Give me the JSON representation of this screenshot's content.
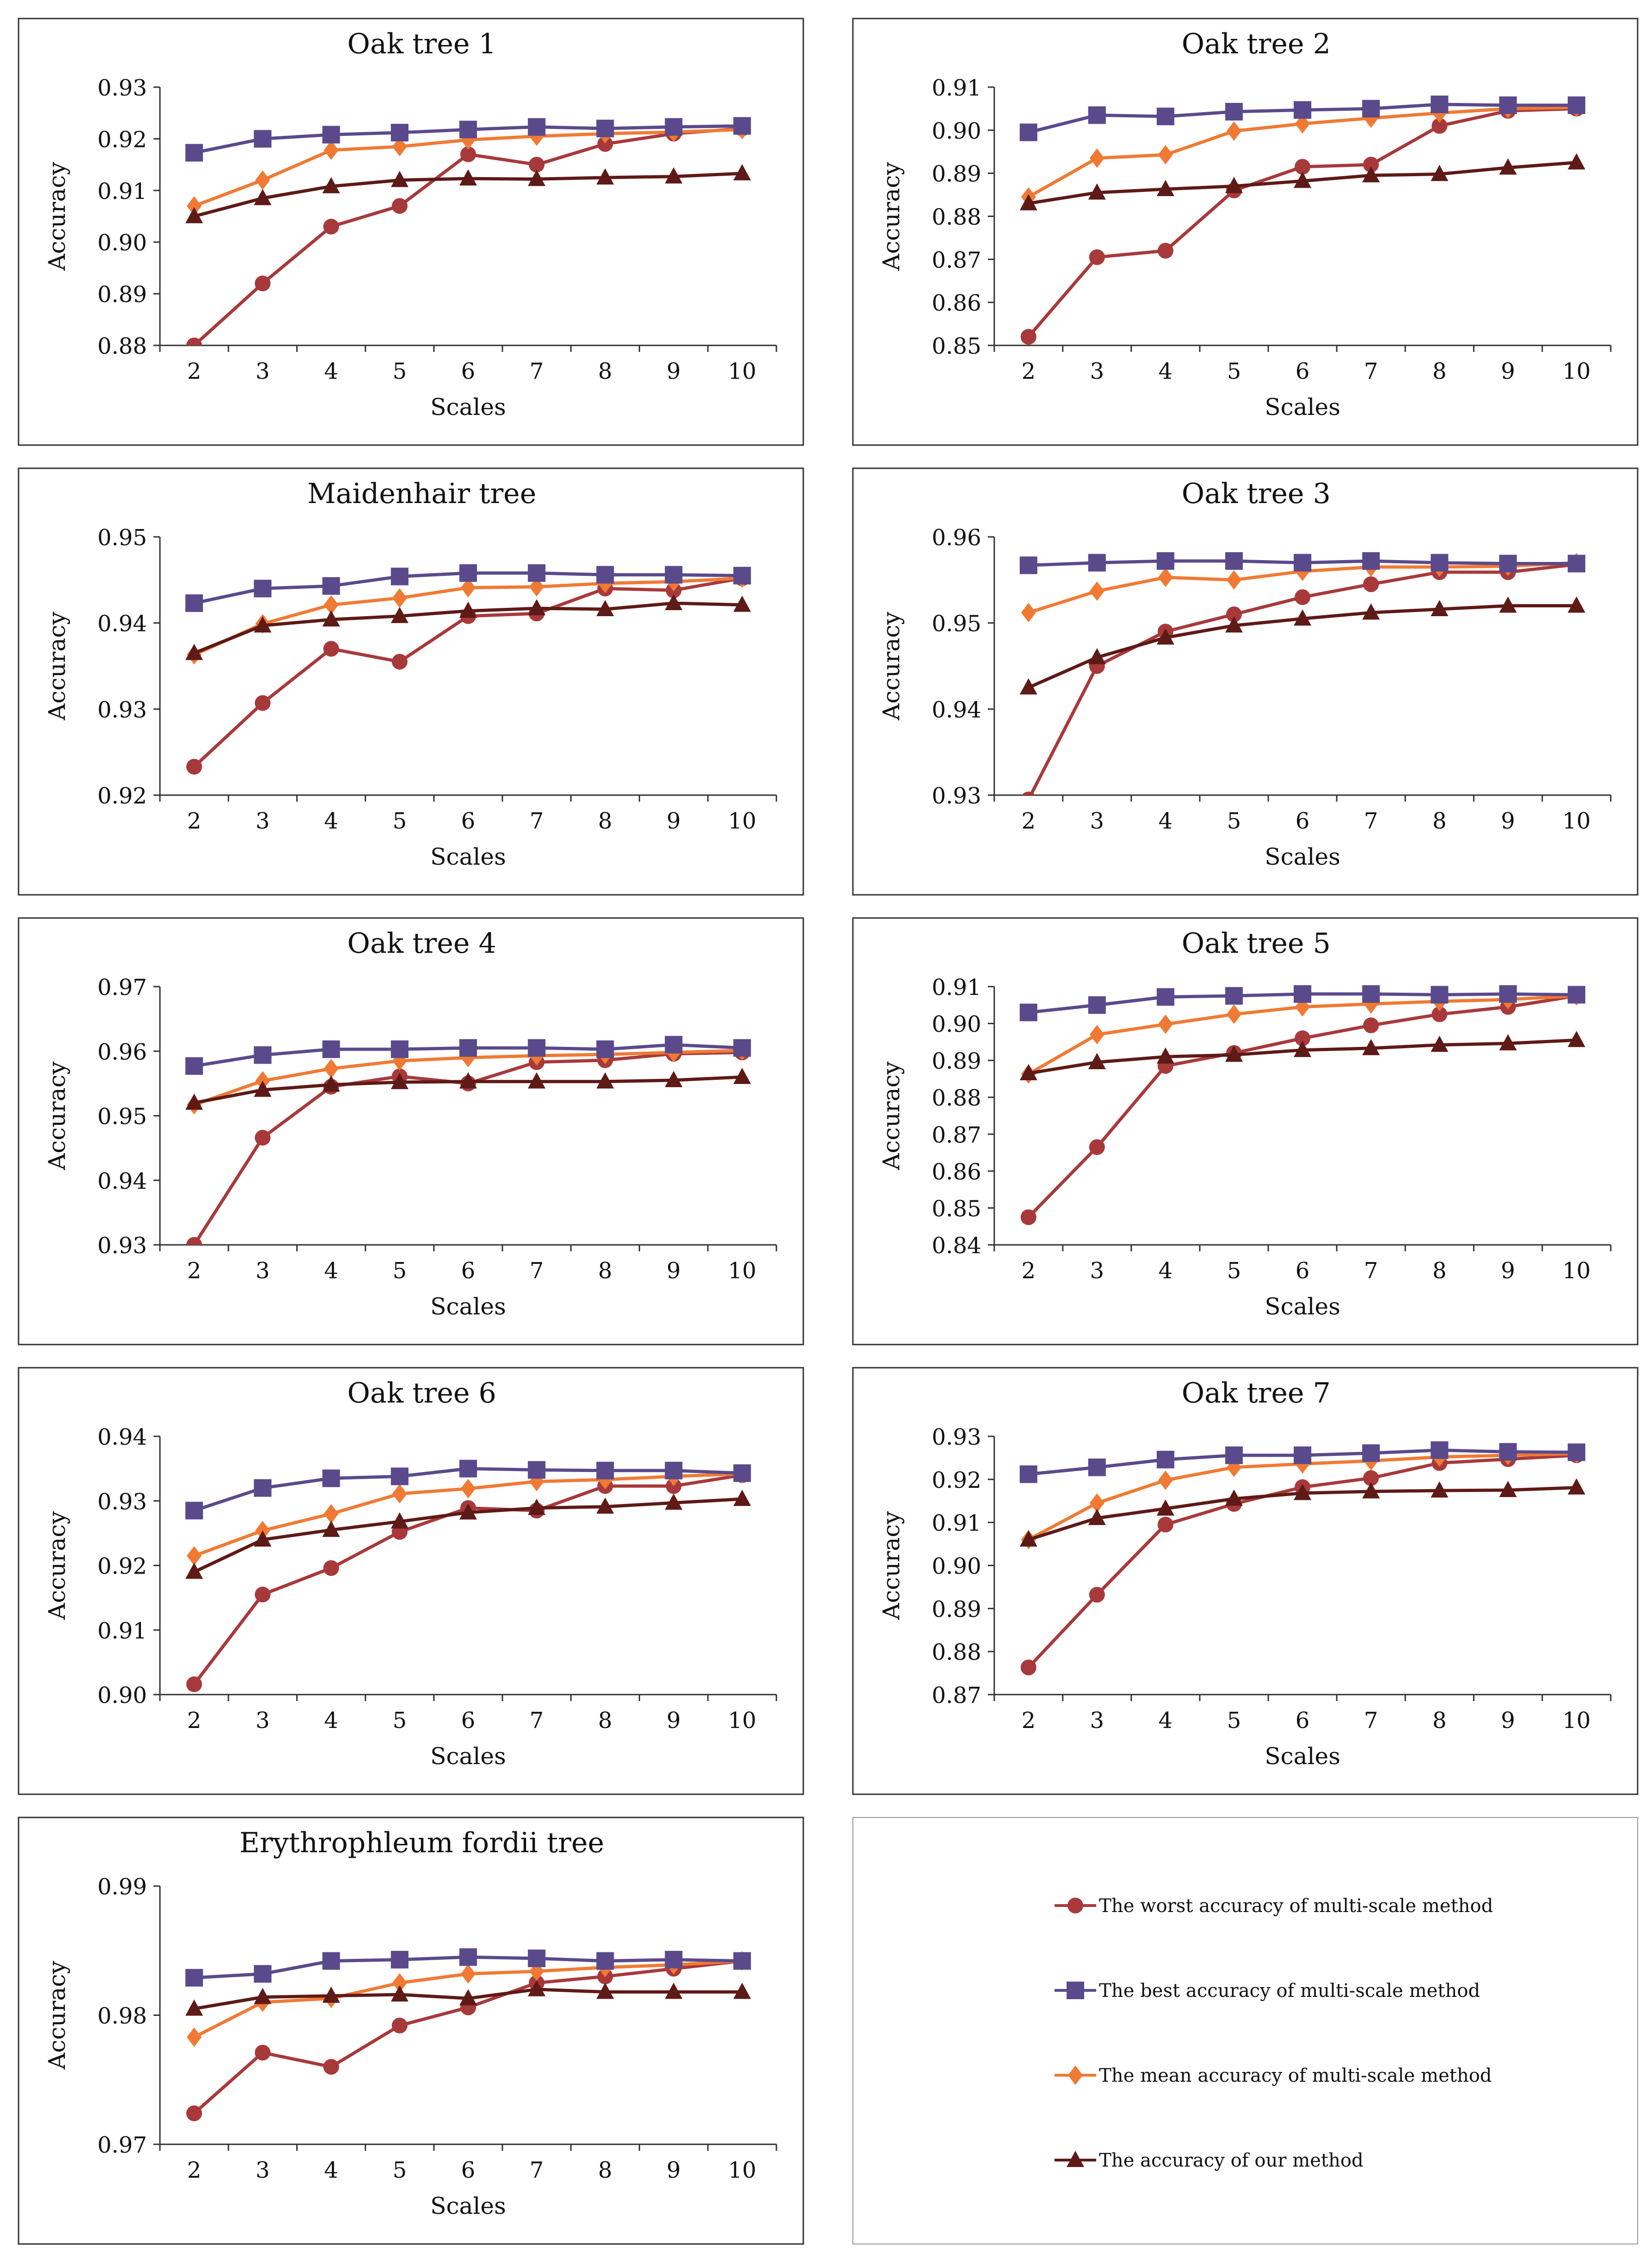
{
  "colors": {
    "worst": "#a8393b",
    "best": "#5a4a8c",
    "mean": "#f07a34",
    "ours": "#5e1a16",
    "panel_border": "#333333",
    "axis": "#333333"
  },
  "legend": {
    "items": [
      {
        "series": "worst",
        "marker": "circle",
        "label": "The worst accuracy of multi-scale method"
      },
      {
        "series": "best",
        "marker": "square",
        "label": "The best accuracy of multi-scale method"
      },
      {
        "series": "mean",
        "marker": "diamond",
        "label": "The mean accuracy of multi-scale method"
      },
      {
        "series": "ours",
        "marker": "triangle",
        "label": "The accuracy of our method"
      }
    ]
  },
  "chart_data": [
    {
      "type": "line",
      "title": "Oak tree 1",
      "xlabel": "Scales",
      "ylabel": "Accuracy",
      "x": [
        2,
        3,
        4,
        5,
        6,
        7,
        8,
        9,
        10
      ],
      "ylim": [
        0.88,
        0.93
      ],
      "yticks": [
        "0.88",
        "0.89",
        "0.90",
        "0.91",
        "0.92",
        "0.93"
      ],
      "series": [
        {
          "key": "worst",
          "name": "The worst accuracy of multi-scale method",
          "values": [
            0.88,
            0.892,
            0.903,
            0.907,
            0.917,
            0.915,
            0.919,
            0.921,
            0.922
          ]
        },
        {
          "key": "best",
          "name": "The best accuracy of multi-scale method",
          "values": [
            0.9173,
            0.92,
            0.9208,
            0.9212,
            0.9218,
            0.9223,
            0.922,
            0.9223,
            0.9225
          ]
        },
        {
          "key": "mean",
          "name": "The mean accuracy of multi-scale method",
          "values": [
            0.907,
            0.912,
            0.9178,
            0.9185,
            0.9198,
            0.9205,
            0.921,
            0.9213,
            0.9218
          ]
        },
        {
          "key": "ours",
          "name": "The accuracy of our method",
          "values": [
            0.905,
            0.9085,
            0.9108,
            0.912,
            0.9123,
            0.9122,
            0.9125,
            0.9127,
            0.9133
          ]
        }
      ]
    },
    {
      "type": "line",
      "title": "Oak tree 2",
      "xlabel": "Scales",
      "ylabel": "Accuracy",
      "x": [
        2,
        3,
        4,
        5,
        6,
        7,
        8,
        9,
        10
      ],
      "ylim": [
        0.85,
        0.91
      ],
      "yticks": [
        "0.85",
        "0.86",
        "0.87",
        "0.88",
        "0.89",
        "0.90",
        "0.91"
      ],
      "series": [
        {
          "key": "worst",
          "name": "The worst accuracy of multi-scale method",
          "values": [
            0.852,
            0.8705,
            0.872,
            0.886,
            0.8915,
            0.892,
            0.901,
            0.9045,
            0.905
          ]
        },
        {
          "key": "best",
          "name": "The best accuracy of multi-scale method",
          "values": [
            0.8995,
            0.9035,
            0.9032,
            0.9043,
            0.9047,
            0.905,
            0.906,
            0.9058,
            0.9058
          ]
        },
        {
          "key": "mean",
          "name": "The mean accuracy of multi-scale method",
          "values": [
            0.8845,
            0.8935,
            0.8943,
            0.8998,
            0.9015,
            0.9028,
            0.904,
            0.905,
            0.9053
          ]
        },
        {
          "key": "ours",
          "name": "The accuracy of our method",
          "values": [
            0.883,
            0.8855,
            0.8863,
            0.887,
            0.8882,
            0.8895,
            0.8898,
            0.8913,
            0.8925
          ]
        }
      ]
    },
    {
      "type": "line",
      "title": "Maidenhair tree",
      "xlabel": "Scales",
      "ylabel": "Accuracy",
      "x": [
        2,
        3,
        4,
        5,
        6,
        7,
        8,
        9,
        10
      ],
      "ylim": [
        0.92,
        0.95
      ],
      "yticks": [
        "0.92",
        "0.93",
        "0.94",
        "0.95"
      ],
      "series": [
        {
          "key": "worst",
          "name": "The worst accuracy of multi-scale method",
          "values": [
            0.9233,
            0.9307,
            0.937,
            0.9355,
            0.9408,
            0.9411,
            0.944,
            0.9438,
            0.9452
          ]
        },
        {
          "key": "best",
          "name": "The best accuracy of multi-scale method",
          "values": [
            0.9423,
            0.944,
            0.9443,
            0.9454,
            0.9458,
            0.9458,
            0.9456,
            0.9456,
            0.9455
          ]
        },
        {
          "key": "mean",
          "name": "The mean accuracy of multi-scale method",
          "values": [
            0.9363,
            0.9399,
            0.9421,
            0.9429,
            0.9441,
            0.9442,
            0.9446,
            0.9448,
            0.9452
          ]
        },
        {
          "key": "ours",
          "name": "The accuracy of our method",
          "values": [
            0.9365,
            0.9397,
            0.9404,
            0.9408,
            0.9414,
            0.9417,
            0.9416,
            0.9423,
            0.9421
          ]
        }
      ]
    },
    {
      "type": "line",
      "title": "Oak tree 3",
      "xlabel": "Scales",
      "ylabel": "Accuracy",
      "x": [
        2,
        3,
        4,
        5,
        6,
        7,
        8,
        9,
        10
      ],
      "ylim": [
        0.93,
        0.96
      ],
      "yticks": [
        "0.93",
        "0.94",
        "0.95",
        "0.96"
      ],
      "series": [
        {
          "key": "worst",
          "name": "The worst accuracy of multi-scale method",
          "values": [
            0.9295,
            0.945,
            0.949,
            0.951,
            0.953,
            0.9545,
            0.9559,
            0.9559,
            0.9568
          ]
        },
        {
          "key": "best",
          "name": "The best accuracy of multi-scale method",
          "values": [
            0.9567,
            0.957,
            0.9572,
            0.9572,
            0.957,
            0.9572,
            0.957,
            0.9569,
            0.9569
          ]
        },
        {
          "key": "mean",
          "name": "The mean accuracy of multi-scale method",
          "values": [
            0.9512,
            0.9537,
            0.9553,
            0.955,
            0.956,
            0.9565,
            0.9565,
            0.9566,
            0.957
          ]
        },
        {
          "key": "ours",
          "name": "The accuracy of our method",
          "values": [
            0.9425,
            0.946,
            0.9483,
            0.9497,
            0.9505,
            0.9512,
            0.9516,
            0.952,
            0.952
          ]
        }
      ]
    },
    {
      "type": "line",
      "title": "Oak tree 4",
      "xlabel": "Scales",
      "ylabel": "Accuracy",
      "x": [
        2,
        3,
        4,
        5,
        6,
        7,
        8,
        9,
        10
      ],
      "ylim": [
        0.93,
        0.97
      ],
      "yticks": [
        "0.93",
        "0.94",
        "0.95",
        "0.96",
        "0.97"
      ],
      "series": [
        {
          "key": "worst",
          "name": "The worst accuracy of multi-scale method",
          "values": [
            0.93,
            0.9466,
            0.9545,
            0.9561,
            0.955,
            0.9583,
            0.9586,
            0.9596,
            0.9598
          ]
        },
        {
          "key": "best",
          "name": "The best accuracy of multi-scale method",
          "values": [
            0.9577,
            0.9594,
            0.9603,
            0.9603,
            0.9605,
            0.9605,
            0.9603,
            0.961,
            0.9605
          ]
        },
        {
          "key": "mean",
          "name": "The mean accuracy of multi-scale method",
          "values": [
            0.9517,
            0.9554,
            0.9573,
            0.9585,
            0.959,
            0.9593,
            0.9595,
            0.9598,
            0.9601
          ]
        },
        {
          "key": "ours",
          "name": "The accuracy of our method",
          "values": [
            0.952,
            0.954,
            0.9548,
            0.9552,
            0.9553,
            0.9553,
            0.9553,
            0.9555,
            0.956
          ]
        }
      ]
    },
    {
      "type": "line",
      "title": "Oak tree 5",
      "xlabel": "Scales",
      "ylabel": "Accuracy",
      "x": [
        2,
        3,
        4,
        5,
        6,
        7,
        8,
        9,
        10
      ],
      "ylim": [
        0.84,
        0.91
      ],
      "yticks": [
        "0.84",
        "0.85",
        "0.86",
        "0.87",
        "0.88",
        "0.89",
        "0.90",
        "0.91"
      ],
      "series": [
        {
          "key": "worst",
          "name": "The worst accuracy of multi-scale method",
          "values": [
            0.8475,
            0.8665,
            0.8885,
            0.892,
            0.896,
            0.8995,
            0.9025,
            0.9045,
            0.9075
          ]
        },
        {
          "key": "best",
          "name": "The best accuracy of multi-scale method",
          "values": [
            0.903,
            0.905,
            0.9072,
            0.9075,
            0.908,
            0.908,
            0.9078,
            0.908,
            0.9078
          ]
        },
        {
          "key": "mean",
          "name": "The mean accuracy of multi-scale method",
          "values": [
            0.8863,
            0.897,
            0.8998,
            0.9025,
            0.9045,
            0.9053,
            0.906,
            0.9065,
            0.9075
          ]
        },
        {
          "key": "ours",
          "name": "The accuracy of our method",
          "values": [
            0.8865,
            0.8895,
            0.891,
            0.8915,
            0.8928,
            0.8933,
            0.8942,
            0.8946,
            0.8955
          ]
        }
      ]
    },
    {
      "type": "line",
      "title": "Oak tree 6",
      "xlabel": "Scales",
      "ylabel": "Accuracy",
      "x": [
        2,
        3,
        4,
        5,
        6,
        7,
        8,
        9,
        10
      ],
      "ylim": [
        0.9,
        0.94
      ],
      "yticks": [
        "0.90",
        "0.91",
        "0.92",
        "0.93",
        "0.94"
      ],
      "series": [
        {
          "key": "worst",
          "name": "The worst accuracy of multi-scale method",
          "values": [
            0.9016,
            0.9155,
            0.9196,
            0.9252,
            0.9289,
            0.9285,
            0.9323,
            0.9323,
            0.934
          ]
        },
        {
          "key": "best",
          "name": "The best accuracy of multi-scale method",
          "values": [
            0.9285,
            0.932,
            0.9335,
            0.9338,
            0.935,
            0.9348,
            0.9347,
            0.9347,
            0.9343
          ]
        },
        {
          "key": "mean",
          "name": "The mean accuracy of multi-scale method",
          "values": [
            0.9215,
            0.9254,
            0.928,
            0.9311,
            0.9319,
            0.933,
            0.9333,
            0.9338,
            0.9342
          ]
        },
        {
          "key": "ours",
          "name": "The accuracy of our method",
          "values": [
            0.919,
            0.924,
            0.9255,
            0.9268,
            0.9282,
            0.9289,
            0.9291,
            0.9297,
            0.9303
          ]
        }
      ]
    },
    {
      "type": "line",
      "title": "Oak tree 7",
      "xlabel": "Scales",
      "ylabel": "Accuracy",
      "x": [
        2,
        3,
        4,
        5,
        6,
        7,
        8,
        9,
        10
      ],
      "ylim": [
        0.87,
        0.93
      ],
      "yticks": [
        "0.87",
        "0.88",
        "0.89",
        "0.90",
        "0.91",
        "0.92",
        "0.93"
      ],
      "series": [
        {
          "key": "worst",
          "name": "The worst accuracy of multi-scale method",
          "values": [
            0.8763,
            0.8932,
            0.9095,
            0.9143,
            0.9182,
            0.9203,
            0.9238,
            0.9247,
            0.9256
          ]
        },
        {
          "key": "best",
          "name": "The best accuracy of multi-scale method",
          "values": [
            0.9212,
            0.9228,
            0.9246,
            0.9256,
            0.9256,
            0.9261,
            0.9268,
            0.9264,
            0.9263
          ]
        },
        {
          "key": "mean",
          "name": "The mean accuracy of multi-scale method",
          "values": [
            0.906,
            0.9145,
            0.9198,
            0.9228,
            0.9236,
            0.9243,
            0.9252,
            0.9256,
            0.926
          ]
        },
        {
          "key": "ours",
          "name": "The accuracy of our method",
          "values": [
            0.906,
            0.911,
            0.9132,
            0.9155,
            0.9168,
            0.9172,
            0.9174,
            0.9175,
            0.9181
          ]
        }
      ]
    },
    {
      "type": "line",
      "title": "Erythrophleum fordii tree",
      "xlabel": "Scales",
      "ylabel": "Accuracy",
      "x": [
        2,
        3,
        4,
        5,
        6,
        7,
        8,
        9,
        10
      ],
      "ylim": [
        0.97,
        0.99
      ],
      "yticks": [
        "0.97",
        "0.98",
        "0.99"
      ],
      "series": [
        {
          "key": "worst",
          "name": "The worst accuracy of multi-scale method",
          "values": [
            0.9724,
            0.9771,
            0.976,
            0.9792,
            0.9806,
            0.9825,
            0.983,
            0.9836,
            0.9842
          ]
        },
        {
          "key": "best",
          "name": "The best accuracy of multi-scale method",
          "values": [
            0.9829,
            0.9832,
            0.9842,
            0.9843,
            0.9845,
            0.9844,
            0.9842,
            0.9843,
            0.9842
          ]
        },
        {
          "key": "mean",
          "name": "The mean accuracy of multi-scale method",
          "values": [
            0.9783,
            0.981,
            0.9813,
            0.9825,
            0.9832,
            0.9834,
            0.9837,
            0.9839,
            0.9842
          ]
        },
        {
          "key": "ours",
          "name": "The accuracy of our method",
          "values": [
            0.9805,
            0.9814,
            0.9815,
            0.9816,
            0.9813,
            0.982,
            0.9818,
            0.9818,
            0.9818
          ]
        }
      ]
    }
  ]
}
